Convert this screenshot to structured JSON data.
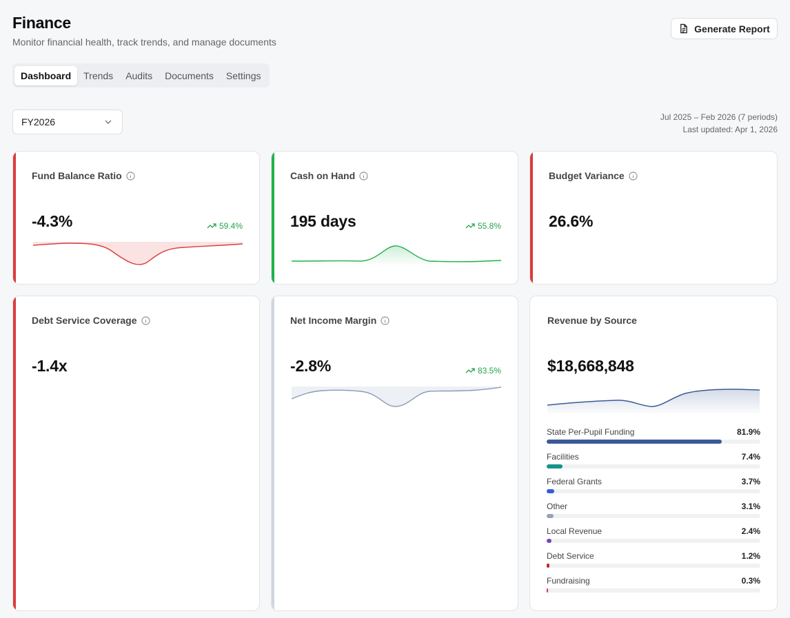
{
  "header": {
    "title": "Finance",
    "subtitle": "Monitor financial health, track trends, and manage documents",
    "generate_report_label": "Generate Report",
    "generate_report_icon": "document-icon"
  },
  "tabs": [
    {
      "label": "Dashboard",
      "active": true
    },
    {
      "label": "Trends",
      "active": false
    },
    {
      "label": "Audits",
      "active": false
    },
    {
      "label": "Documents",
      "active": false
    },
    {
      "label": "Settings",
      "active": false
    }
  ],
  "filter": {
    "fiscal_year": "FY2026",
    "period_range": "Jul 2025 – Feb 2026 (7 periods)",
    "last_updated": "Last updated: Apr 1, 2026"
  },
  "colors": {
    "red": "#dc3b3b",
    "green": "#22b14c",
    "slate": "#8a9bb5",
    "navy": "#3a5a95",
    "delta_up": "#22a34a"
  },
  "cards": {
    "fund_balance": {
      "label": "Fund Balance Ratio",
      "value": "-4.3%",
      "delta": "59.4%",
      "accent": "red"
    },
    "cash_on_hand": {
      "label": "Cash on Hand",
      "value": "195 days",
      "delta": "55.8%",
      "accent": "green"
    },
    "budget_variance": {
      "label": "Budget Variance",
      "value": "26.6%",
      "accent": "red"
    },
    "debt_service": {
      "label": "Debt Service Coverage",
      "value": "-1.4x",
      "accent": "red"
    },
    "net_income": {
      "label": "Net Income Margin",
      "value": "-2.8%",
      "delta": "83.5%",
      "accent": "slate"
    },
    "revenue": {
      "label": "Revenue by Source",
      "value": "$18,668,848",
      "sources": [
        {
          "name": "State Per-Pupil Funding",
          "pct": "81.9%",
          "value": 81.9,
          "color": "#3a5a95"
        },
        {
          "name": "Facilities",
          "pct": "7.4%",
          "value": 7.4,
          "color": "#14938a"
        },
        {
          "name": "Federal Grants",
          "pct": "3.7%",
          "value": 3.7,
          "color": "#2f5fd0"
        },
        {
          "name": "Other",
          "pct": "3.1%",
          "value": 3.1,
          "color": "#94a3b8"
        },
        {
          "name": "Local Revenue",
          "pct": "2.4%",
          "value": 2.4,
          "color": "#7b3fc9"
        },
        {
          "name": "Debt Service",
          "pct": "1.2%",
          "value": 1.2,
          "color": "#c62828"
        },
        {
          "name": "Fundraising",
          "pct": "0.3%",
          "value": 0.3,
          "color": "#d6336c"
        }
      ]
    }
  }
}
